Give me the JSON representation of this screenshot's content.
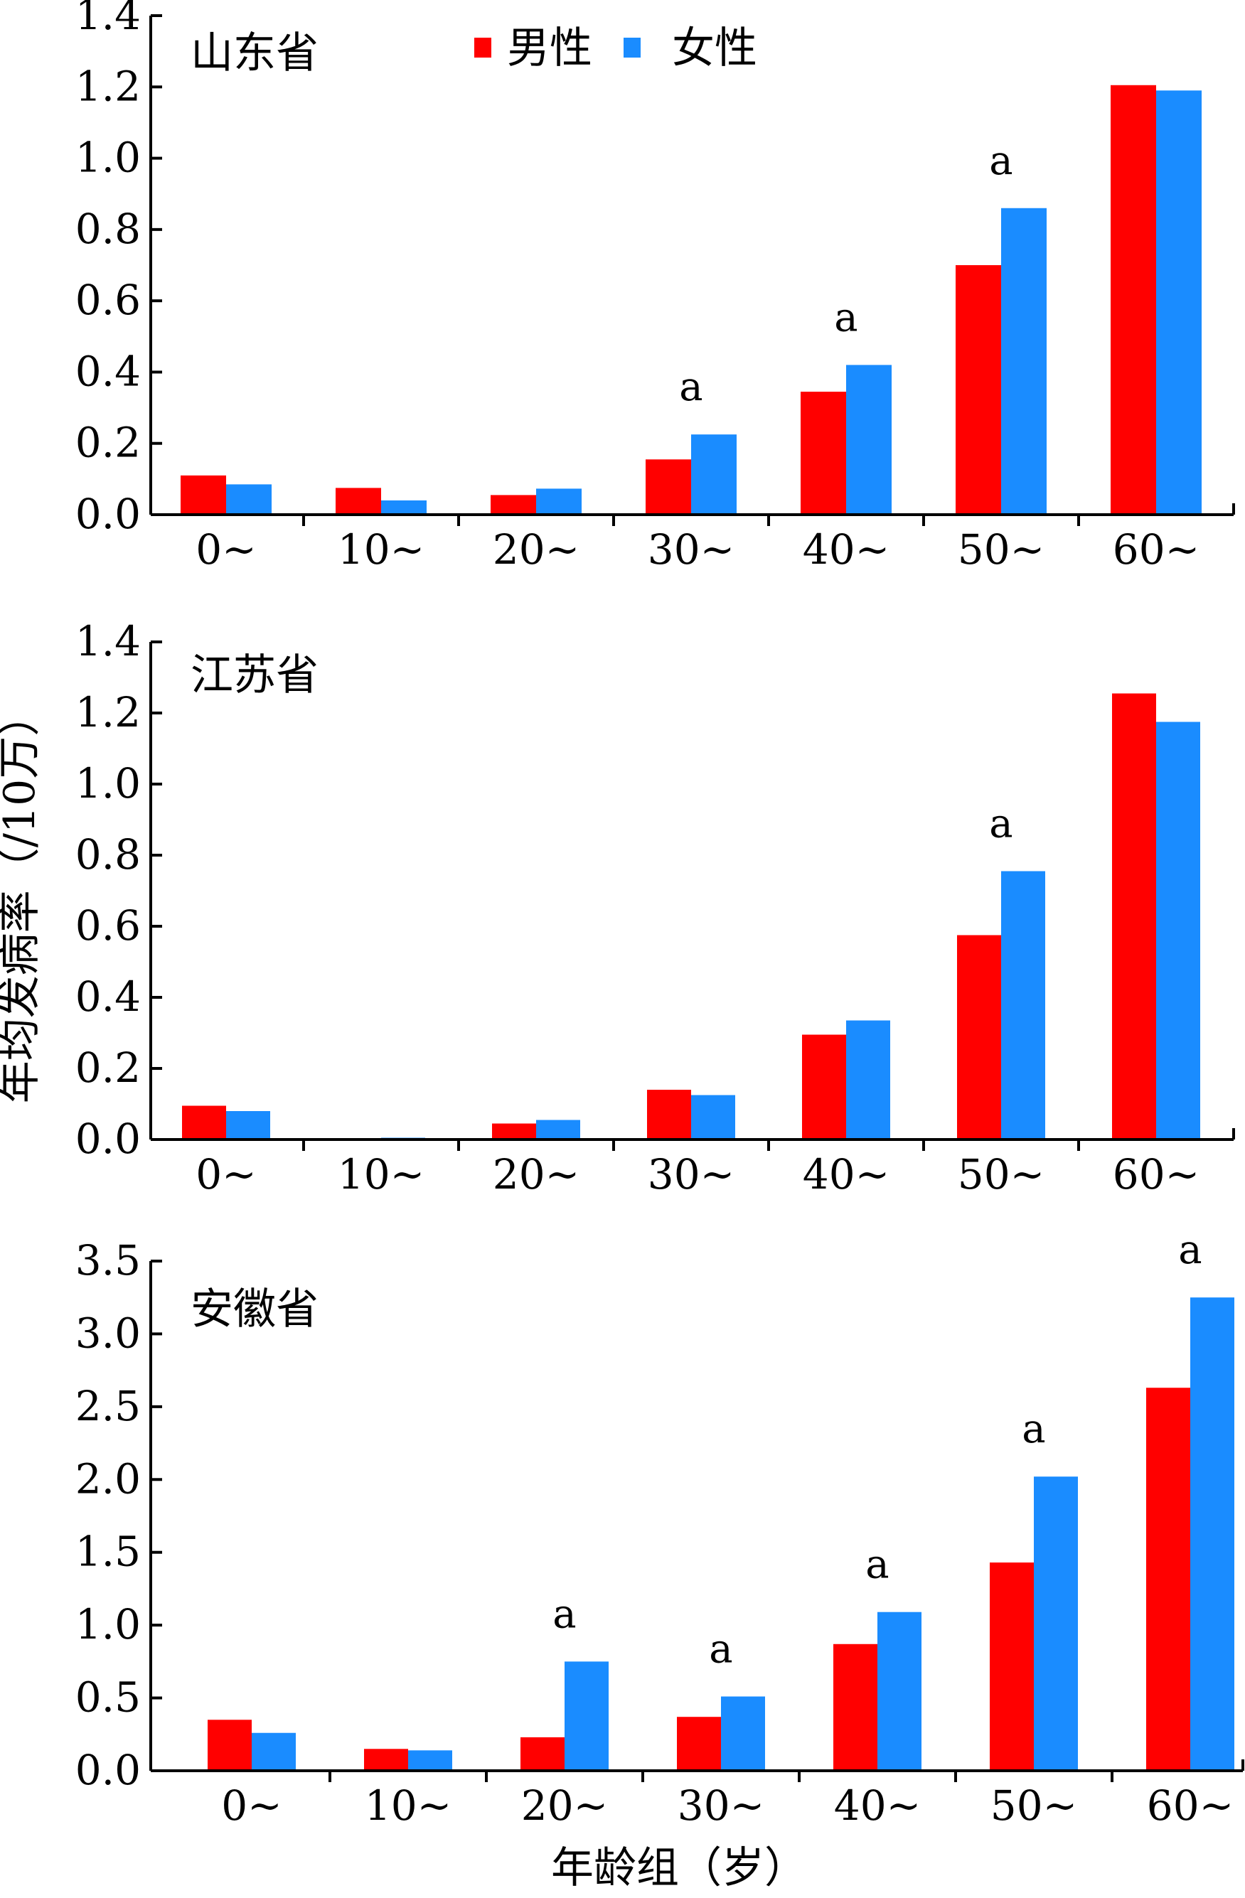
{
  "colors": {
    "male": "#ff0000",
    "female": "#1a8cff",
    "axis": "#000000",
    "background": "#ffffff"
  },
  "chart_data": {
    "type": "bar",
    "ylabel": "年均发病率（/10万）",
    "xlabel": "年龄组（岁）",
    "legend": {
      "placement": "top",
      "entries": [
        "男性",
        "女性"
      ]
    },
    "categories": [
      "0~",
      "10~",
      "20~",
      "30~",
      "40~",
      "50~",
      "60~"
    ],
    "panels": [
      {
        "title": "山东省",
        "ylim": [
          0,
          1.4
        ],
        "yticks": [
          0.0,
          0.2,
          0.4,
          0.6,
          0.8,
          1.0,
          1.2,
          1.4
        ],
        "ytick_labels": [
          "0.0",
          "0.2",
          "0.4",
          "0.6",
          "0.8",
          "1.0",
          "1.2",
          "1.4"
        ],
        "series": [
          {
            "name": "男性",
            "values": [
              0.11,
              0.075,
              0.055,
              0.155,
              0.345,
              0.7,
              1.205
            ]
          },
          {
            "name": "女性",
            "values": [
              0.085,
              0.04,
              0.073,
              0.225,
              0.42,
              0.86,
              1.19
            ]
          }
        ],
        "annotations": [
          {
            "category": "30~",
            "text": "a"
          },
          {
            "category": "40~",
            "text": "a"
          },
          {
            "category": "50~",
            "text": "a"
          }
        ]
      },
      {
        "title": "江苏省",
        "ylim": [
          0,
          1.4
        ],
        "yticks": [
          0.0,
          0.2,
          0.4,
          0.6,
          0.8,
          1.0,
          1.2,
          1.4
        ],
        "ytick_labels": [
          "0.0",
          "0.2",
          "0.4",
          "0.6",
          "0.8",
          "1.0",
          "1.2",
          "1.4"
        ],
        "series": [
          {
            "name": "男性",
            "values": [
              0.095,
              0.003,
              0.045,
              0.14,
              0.295,
              0.575,
              1.255
            ]
          },
          {
            "name": "女性",
            "values": [
              0.08,
              0.005,
              0.055,
              0.125,
              0.335,
              0.755,
              1.175
            ]
          }
        ],
        "annotations": [
          {
            "category": "50~",
            "text": "a"
          }
        ]
      },
      {
        "title": "安徽省",
        "ylim": [
          0,
          3.5
        ],
        "yticks": [
          0.0,
          0.5,
          1.0,
          1.5,
          2.0,
          2.5,
          3.0,
          3.5
        ],
        "ytick_labels": [
          "0.0",
          "0.5",
          "1.0",
          "1.5",
          "2.0",
          "2.5",
          "3.0",
          "3.5"
        ],
        "series": [
          {
            "name": "男性",
            "values": [
              0.35,
              0.15,
              0.23,
              0.37,
              0.87,
              1.43,
              2.63
            ]
          },
          {
            "name": "女性",
            "values": [
              0.26,
              0.14,
              0.75,
              0.51,
              1.09,
              2.02,
              3.25
            ]
          }
        ],
        "annotations": [
          {
            "category": "20~",
            "text": "a"
          },
          {
            "category": "30~",
            "text": "a"
          },
          {
            "category": "40~",
            "text": "a"
          },
          {
            "category": "50~",
            "text": "a"
          },
          {
            "category": "60~",
            "text": "a"
          }
        ]
      }
    ]
  }
}
